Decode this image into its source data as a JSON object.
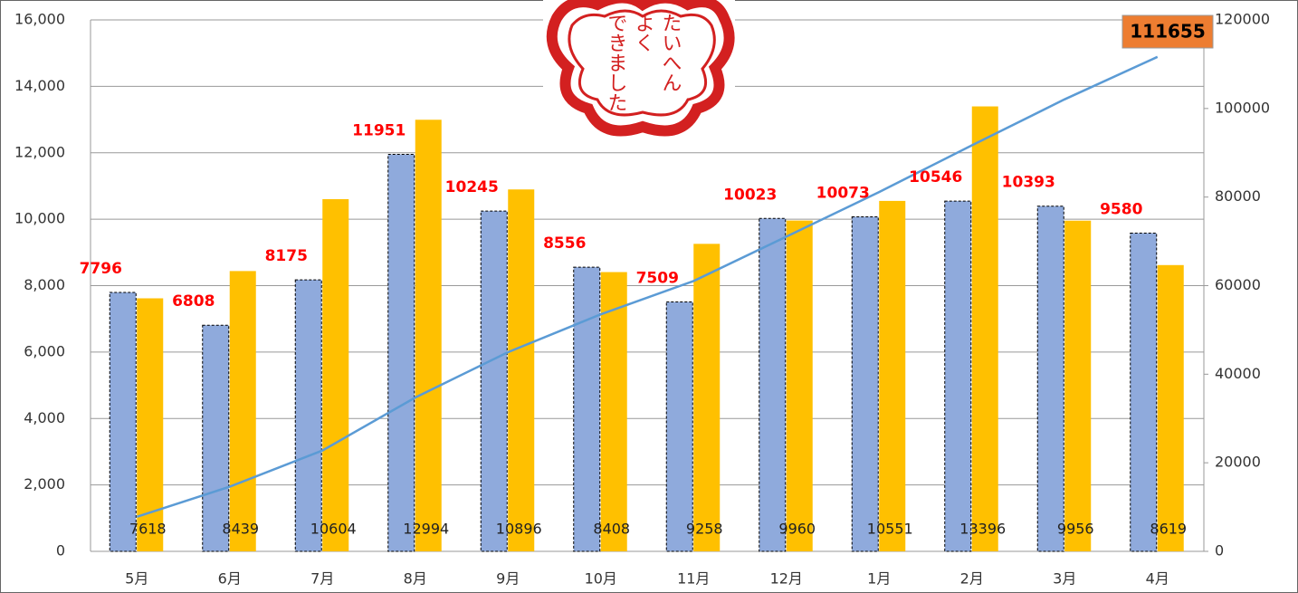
{
  "chart_data": {
    "type": "bar",
    "categories": [
      "5月",
      "6月",
      "7月",
      "8月",
      "9月",
      "10月",
      "11月",
      "12月",
      "1月",
      "2月",
      "3月",
      "4月"
    ],
    "series": [
      {
        "color": "#8faadc",
        "values": [
          7796,
          6808,
          8175,
          11951,
          10245,
          8556,
          7509,
          10023,
          10073,
          10546,
          10393,
          9580
        ]
      },
      {
        "color": "#ffc000",
        "values": [
          7618,
          8439,
          10604,
          12994,
          10896,
          8408,
          9258,
          9960,
          10551,
          13396,
          9956,
          8619
        ]
      },
      {
        "type": "line",
        "axis": "y2",
        "color": "#5b9bd5",
        "values": [
          7796,
          14604,
          22779,
          34730,
          44975,
          53531,
          61040,
          71063,
          81136,
          91682,
          102075,
          111655
        ]
      }
    ],
    "ylim": [
      0,
      16000
    ],
    "yticks": [
      0,
      {
        "value": 2000,
        "label": "2,000"
      },
      {
        "value": 4000,
        "label": "4,000"
      },
      {
        "value": 6000,
        "label": "6,000"
      },
      {
        "value": 8000,
        "label": "8,000"
      },
      {
        "value": 10000,
        "label": "10,000"
      },
      {
        "value": 12000,
        "label": "12,000"
      },
      {
        "value": 14000,
        "label": "14,000"
      },
      {
        "value": 16000,
        "label": "16,000"
      }
    ],
    "y2lim": [
      0,
      120000
    ],
    "y2ticks": [
      0,
      20000,
      40000,
      60000,
      80000,
      100000,
      120000
    ],
    "grid": true,
    "annotations": [
      "たいへん",
      "よく",
      "できました"
    ]
  }
}
